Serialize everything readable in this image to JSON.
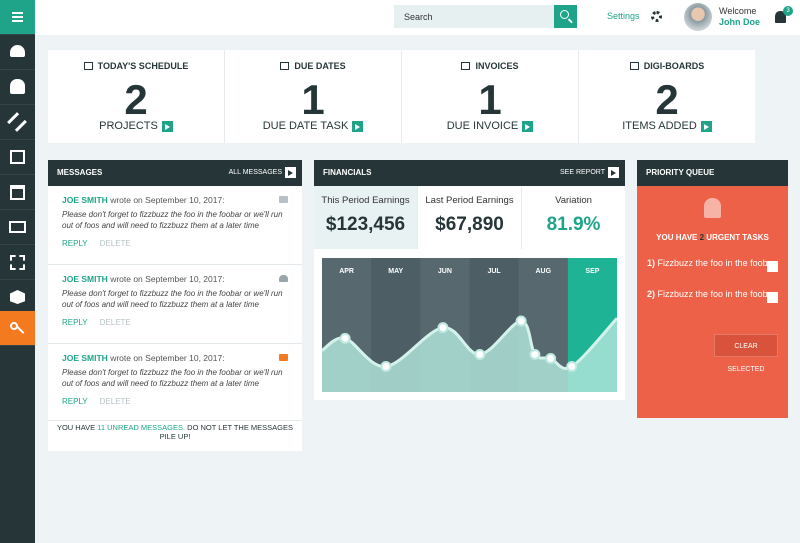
{
  "topbar": {
    "search_placeholder": "Search",
    "settings": "Settings",
    "welcome": "Welcome",
    "user": "John Doe",
    "notifications": 3
  },
  "stats": [
    {
      "title": "TODAY'S SCHEDULE",
      "value": 2,
      "label": "PROJECTS"
    },
    {
      "title": "DUE DATES",
      "value": 1,
      "label": "DUE DATE TASK"
    },
    {
      "title": "INVOICES",
      "value": 1,
      "label": "DUE INVOICE"
    },
    {
      "title": "DIGI-BOARDS",
      "value": 2,
      "label": "ITEMS ADDED"
    }
  ],
  "messages": {
    "title": "MESSAGES",
    "link": "ALL MESSAGES",
    "items": [
      {
        "author": "JOE SMITH",
        "wrote": "wrote on",
        "date": "September 10, 2017:",
        "body": "Please don't forget to fizzbuzz the foo in the foobar or we'll run out of foos and will need to fizzbuzz them at a later time",
        "reply": "REPLY",
        "delete": "DELETE"
      },
      {
        "author": "JOE SMITH",
        "wrote": "wrote on",
        "date": "September 10, 2017:",
        "body": "Please don't forget to fizzbuzz the foo in the foobar or we'll run out of foos and will need to fizzbuzz them at a later time",
        "reply": "REPLY",
        "delete": "DELETE"
      },
      {
        "author": "JOE SMITH",
        "wrote": "wrote on",
        "date": "September 10, 2017:",
        "body": "Please don't forget to fizzbuzz the foo in the foobar or we'll run out of foos and will need to fizzbuzz them at a later time",
        "reply": "REPLY",
        "delete": "DELETE"
      }
    ],
    "footer": {
      "prefix": "YOU HAVE",
      "highlight": "11 UNREAD MESSAGES.",
      "suffix": "DO NOT LET THE MESSAGES PILE UP!"
    }
  },
  "financials": {
    "title": "FINANCIALS",
    "link": "SEE REPORT",
    "metrics": [
      {
        "label": "This Period Earnings",
        "value": "$123,456"
      },
      {
        "label": "Last Period Earnings",
        "value": "$67,890"
      },
      {
        "label": "Variation",
        "value": "81.9%"
      }
    ],
    "chart": {
      "type": "area",
      "categories": [
        "APR",
        "MAY",
        "JUN",
        "JUL",
        "AUG",
        "SEP"
      ],
      "x": [
        0,
        0.47,
        1.3,
        2.46,
        3.21,
        4.05,
        4.33,
        4.65,
        5.08,
        6
      ],
      "values": [
        31,
        40,
        19,
        48,
        28,
        53,
        28,
        25,
        19,
        55
      ],
      "xlim": [
        0,
        6
      ],
      "ylim": [
        0,
        100
      ]
    }
  },
  "priority": {
    "title": "PRIORITY QUEUE",
    "summary_prefix": "YOU HAVE",
    "count": 2,
    "summary_suffix": "URGENT TASKS",
    "tasks": [
      {
        "number": "1)",
        "text": "Fizzbuzz the foo in the foobar"
      },
      {
        "number": "2)",
        "text": "Fizzbuzz the foo in the foobar"
      }
    ],
    "button": "CLEAR SELECTED"
  }
}
